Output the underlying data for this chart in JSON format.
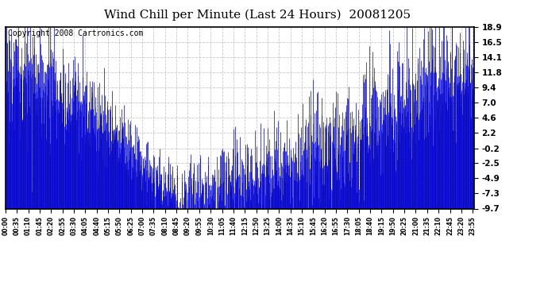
{
  "title": "Wind Chill per Minute (Last 24 Hours)  20081205",
  "copyright": "Copyright 2008 Cartronics.com",
  "line_color": "#0000cc",
  "bg_color": "#ffffff",
  "plot_bg_color": "#ffffff",
  "grid_color": "#bbbbbb",
  "yticks": [
    18.9,
    16.5,
    14.1,
    11.8,
    9.4,
    7.0,
    4.6,
    2.2,
    -0.2,
    -2.5,
    -4.9,
    -7.3,
    -9.7
  ],
  "ymin": -9.7,
  "ymax": 18.9,
  "title_fontsize": 11,
  "copyright_fontsize": 7
}
